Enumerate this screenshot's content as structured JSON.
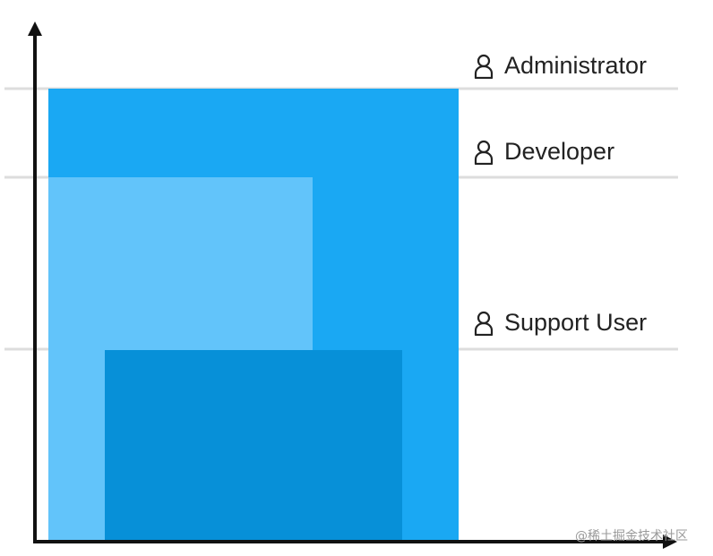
{
  "diagram": {
    "colors": {
      "administrator": "#1aa8f3",
      "developer": "#62c4fa",
      "support_user": "#0790d8",
      "gridline": "#dddddd",
      "axis": "#111111",
      "label_text": "#222222"
    },
    "levels": [
      {
        "id": "administrator",
        "label": "Administrator",
        "icon": "user-icon"
      },
      {
        "id": "developer",
        "label": "Developer",
        "icon": "user-icon"
      },
      {
        "id": "support_user",
        "label": "Support User",
        "icon": "user-icon"
      }
    ]
  },
  "watermark": "@稀土掘金技术社区"
}
